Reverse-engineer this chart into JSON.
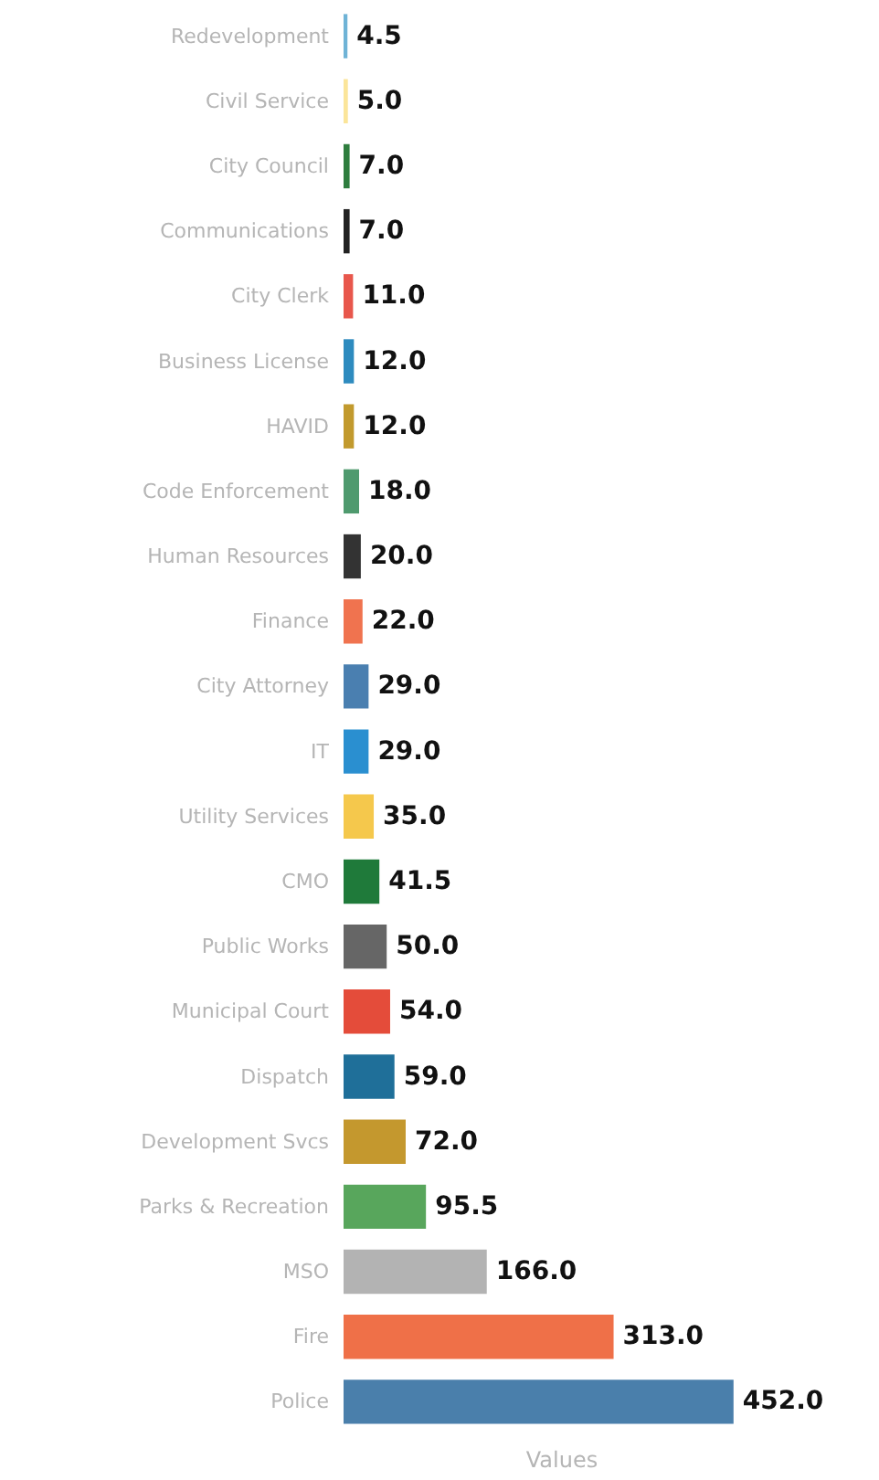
{
  "chart_data": {
    "type": "bar",
    "orientation": "horizontal",
    "xlabel": "Values",
    "categories": [
      "Redevelopment",
      "Civil Service",
      "City Council",
      "Communications",
      "City Clerk",
      "Business License",
      "HAVID",
      "Code Enforcement",
      "Human Resources",
      "Finance",
      "City Attorney",
      "IT",
      "Utility Services",
      "CMO",
      "Public Works",
      "Municipal Court",
      "Dispatch",
      "Development Svcs",
      "Parks & Recreation",
      "MSO",
      "Fire",
      "Police"
    ],
    "values": [
      4.5,
      5,
      7,
      7,
      11,
      12,
      12,
      18,
      20,
      22,
      29,
      29,
      35,
      41.5,
      50,
      54,
      59,
      72,
      95.5,
      166,
      313,
      452
    ],
    "value_labels": [
      "4.5",
      "5.0",
      "7.0",
      "7.0",
      "11.0",
      "12.0",
      "12.0",
      "18.0",
      "20.0",
      "22.0",
      "29.0",
      "29.0",
      "35.0",
      "41.5",
      "50.0",
      "54.0",
      "59.0",
      "72.0",
      "95.5",
      "166.0",
      "313.0",
      "452.0"
    ],
    "colors": [
      "#6fb3d6",
      "#fbe59a",
      "#2e7d3e",
      "#222222",
      "#e8574c",
      "#2e8bbf",
      "#c29a2e",
      "#4f9a6e",
      "#333333",
      "#f0734f",
      "#4a7fb0",
      "#2a8fd0",
      "#f5c84c",
      "#1f7a3a",
      "#666666",
      "#e44c3a",
      "#1f6f99",
      "#c4982e",
      "#58a65c",
      "#b3b3b3",
      "#ef7048",
      "#4a7fab"
    ]
  }
}
